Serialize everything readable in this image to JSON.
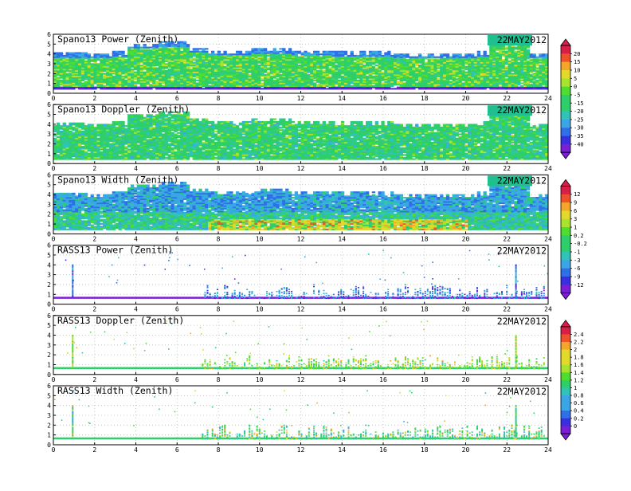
{
  "date_label": "22MAY2012",
  "colors": {
    "frame": "#000000",
    "grid": "#bbbbbb",
    "date_badge": "#1fbf8f"
  },
  "panels": [
    {
      "title": "Spano13 Power (Zenith)",
      "kind": "spano",
      "variable": "power",
      "colorbar": 0,
      "shade_profile": "power"
    },
    {
      "title": "Spano13 Doppler (Zenith)",
      "kind": "spano",
      "variable": "doppler",
      "colorbar": 0,
      "shade_profile": "doppler"
    },
    {
      "title": "Spano13 Width (Zenith)",
      "kind": "spano",
      "variable": "width",
      "colorbar": 1,
      "shade_profile": "width"
    },
    {
      "title": "RASS13 Power (Zenith)",
      "kind": "rass",
      "variable": "power",
      "colorbar": 1,
      "shade_profile": "rass_power"
    },
    {
      "title": "RASS13 Doppler (Zenith)",
      "kind": "rass",
      "variable": "doppler",
      "colorbar": 2,
      "shade_profile": "rass_doppler"
    },
    {
      "title": "RASS13 Width (Zenith)",
      "kind": "rass",
      "variable": "width",
      "colorbar": 2,
      "shade_profile": "rass_width"
    }
  ],
  "colorbars": [
    {
      "labels": [
        "20",
        "15",
        "10",
        "5",
        "0",
        "-5",
        "-15",
        "-20",
        "-25",
        "-30",
        "-35",
        "-40"
      ],
      "panels": "1-2"
    },
    {
      "labels": [
        "12",
        "9",
        "6",
        "3",
        "1",
        "0.2",
        "-0.2",
        "-1",
        "-3",
        "-6",
        "-9",
        "-12"
      ],
      "panels": "3-4"
    },
    {
      "labels": [
        "2.4",
        "2.2",
        "2",
        "1.8",
        "1.6",
        "1.4",
        "1.2",
        "1",
        "0.8",
        "0.6",
        "0.4",
        "0.2",
        "0"
      ],
      "panels": "5-6"
    }
  ],
  "chart_data": {
    "type": "heatmap",
    "x_axis": {
      "range": [
        0,
        24
      ],
      "ticks": [
        "0",
        "2",
        "4",
        "6",
        "8",
        "10",
        "12",
        "14",
        "16",
        "18",
        "20",
        "22",
        "24"
      ]
    },
    "y_axis": {
      "range": [
        0,
        6
      ],
      "ticks": [
        "0",
        "1",
        "2",
        "3",
        "4",
        "5",
        "6"
      ]
    },
    "grid": true,
    "legend_placement": "right",
    "spano_top_profile": [
      [
        0,
        4.1
      ],
      [
        1.5,
        4.0
      ],
      [
        2.8,
        4.2
      ],
      [
        3.5,
        5.0
      ],
      [
        5.0,
        5.2
      ],
      [
        6.5,
        4.6
      ],
      [
        7.5,
        4.3
      ],
      [
        9.5,
        4.5
      ],
      [
        11.5,
        4.3
      ],
      [
        13.5,
        4.2
      ],
      [
        16.5,
        4.0
      ],
      [
        20.5,
        4.2
      ],
      [
        21.0,
        5.4
      ],
      [
        22.5,
        5.3
      ],
      [
        23.0,
        4.0
      ],
      [
        24,
        3.8
      ]
    ],
    "rass_spike_hours": [
      0.9,
      22.4
    ],
    "rass_active_interval": [
      7.2,
      23.8
    ],
    "rass_active_top": 2.0
  }
}
